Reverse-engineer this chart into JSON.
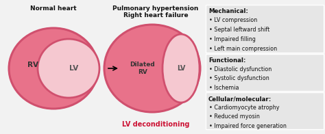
{
  "bg_color": "#f2f2f2",
  "normal_title": "Normal heart",
  "ph_title": "Pulmonary hypertension\nRight heart failure",
  "lv_deco": "LV deconditioning",
  "rv_fill": "#e8728a",
  "rv_border": "#d0506e",
  "lv_fill": "#f5c8d0",
  "lv_border": "#d0506e",
  "mechanical_title": "Mechanical:",
  "mechanical_items": [
    "LV compression",
    "Septal leftward shift",
    "Impaired filling",
    "Left main compression"
  ],
  "functional_title": "Functional:",
  "functional_items": [
    "Diastolic dysfunction",
    "Systolic dysfunction",
    "Ischemia"
  ],
  "cellular_title": "Cellular/molecular:",
  "cellular_items": [
    "Cardiomyocyte atrophy",
    "Reduced myosin",
    "Impaired force generation"
  ],
  "box_bg": "#e6e6e6",
  "text_color": "#111111",
  "label_rv": "RV",
  "label_lv": "LV",
  "label_dilated_rv": "Dilated\nRV",
  "label_lv2": "LV",
  "title_fontsize": 6.5,
  "body_fontsize": 5.8,
  "section_title_fontsize": 6.2
}
